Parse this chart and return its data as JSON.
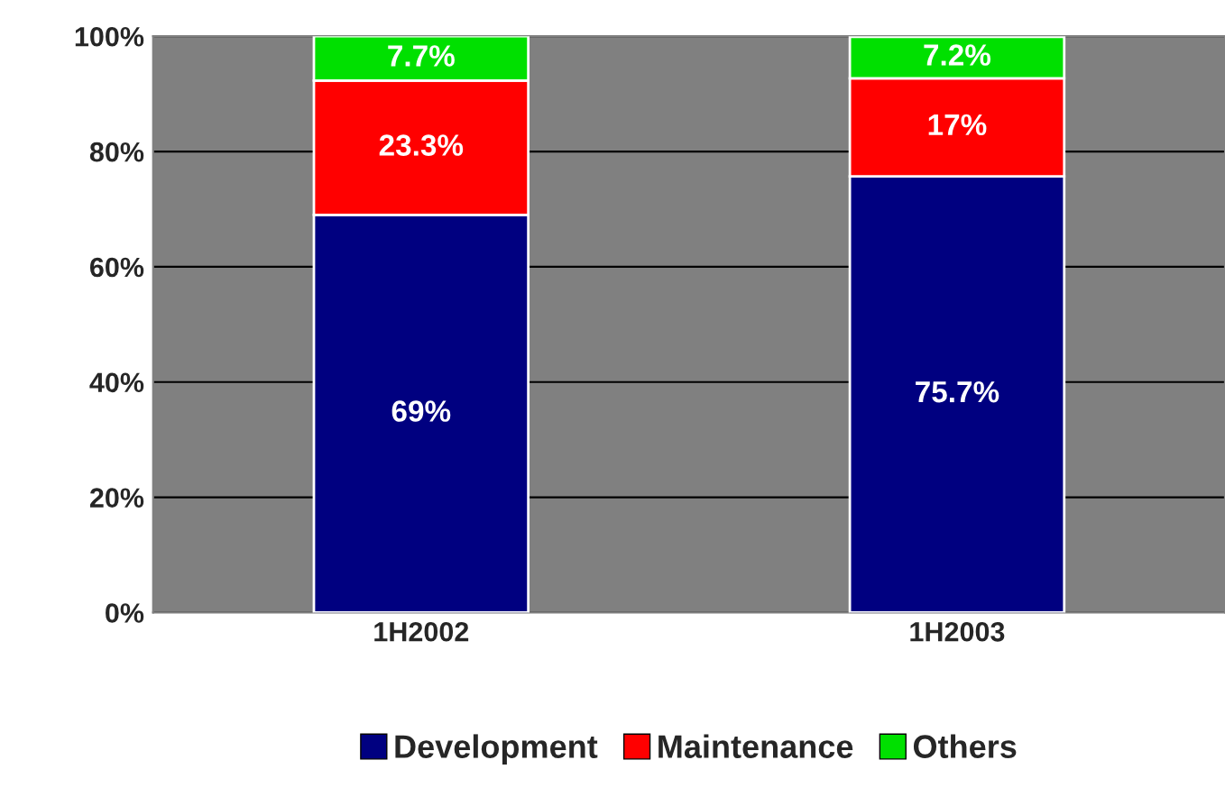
{
  "chart_data": {
    "type": "bar",
    "stacked": true,
    "categories": [
      "1H2002",
      "1H2003"
    ],
    "series": [
      {
        "name": "Development",
        "color": "#000080",
        "values": [
          69,
          75.7
        ],
        "value_labels": [
          "69%",
          "75.7%"
        ]
      },
      {
        "name": "Maintenance",
        "color": "#ff0000",
        "values": [
          23.3,
          17
        ],
        "value_labels": [
          "23.3%",
          "17%"
        ]
      },
      {
        "name": "Others",
        "color": "#00e000",
        "values": [
          7.7,
          7.2
        ],
        "value_labels": [
          "7.7%",
          "7.2%"
        ]
      }
    ],
    "ylim": [
      0,
      100
    ],
    "yticks": [
      {
        "value": 0,
        "label": "0%"
      },
      {
        "value": 20,
        "label": "20%"
      },
      {
        "value": 40,
        "label": "40%"
      },
      {
        "value": 60,
        "label": "60%"
      },
      {
        "value": 80,
        "label": "80%"
      },
      {
        "value": 100,
        "label": "100%"
      }
    ],
    "grid": "y",
    "legend": "bottom"
  }
}
